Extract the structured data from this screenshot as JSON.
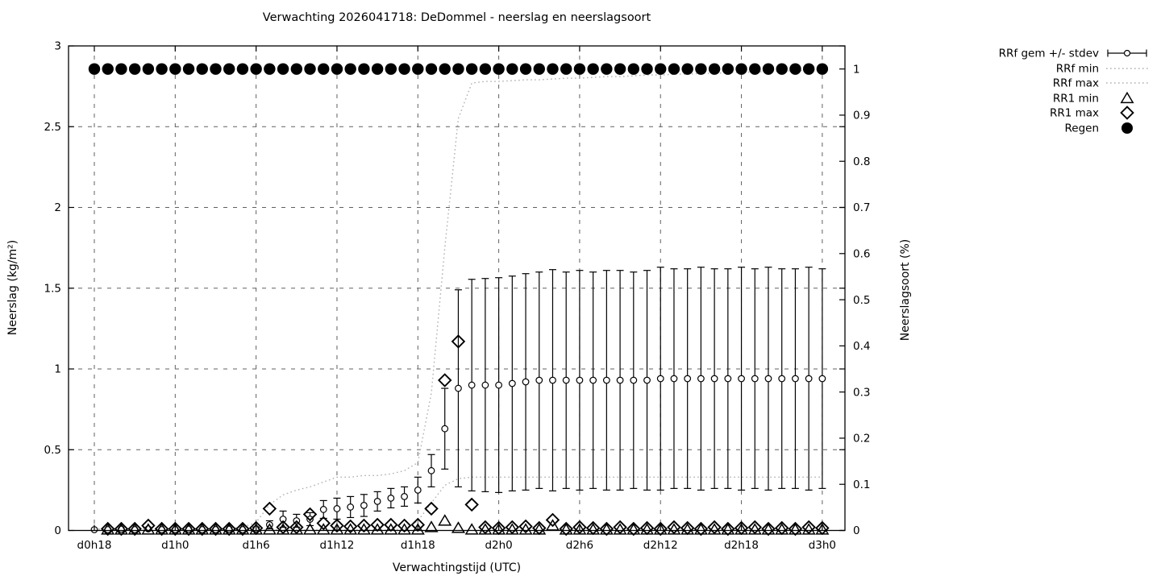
{
  "title": "Verwachting 2026041718: DeDommel - neerslag en neerslagsoort",
  "chart_data": {
    "type": "errorbar-scatter-line",
    "title": "Verwachting 2026041718: DeDommel - neerslag en neerslagsoort",
    "xlabel": "Verwachtingstijd (UTC)",
    "ylabel": "Neerslag (kg/m²)",
    "y2label": "Neerslagsoort (%)",
    "grid": true,
    "legend_position": "outside-right-top",
    "x_axis": {
      "range_hours": [
        -2,
        55.7
      ],
      "tick_positions": [
        0,
        6,
        12,
        18,
        24,
        30,
        36,
        42,
        48,
        54
      ],
      "tick_labels": [
        "d0h18",
        "d1h0",
        "d1h6",
        "d1h12",
        "d1h18",
        "d2h0",
        "d2h6",
        "d2h12",
        "d2h18",
        "d3h0"
      ]
    },
    "y_axis": {
      "min": 0,
      "max": 3,
      "tick_values": [
        0,
        0.5,
        1,
        1.5,
        2,
        2.5,
        3
      ],
      "tick_labels": [
        "0",
        "0.5",
        "1",
        "1.5",
        "2",
        "2.5",
        "3"
      ]
    },
    "y2_axis": {
      "min": 0,
      "max": 1.05,
      "tick_values": [
        0,
        0.1,
        0.2,
        0.3,
        0.4,
        0.5,
        0.6,
        0.7,
        0.8,
        0.9,
        1
      ],
      "tick_labels": [
        "0",
        "0.1",
        "0.2",
        "0.3",
        "0.4",
        "0.5",
        "0.6",
        "0.7",
        "0.8",
        "0.9",
        "1"
      ]
    },
    "categories": [
      "d0h18",
      "d0h19",
      "d0h20",
      "d0h21",
      "d0h22",
      "d0h23",
      "d1h0",
      "d1h1",
      "d1h2",
      "d1h3",
      "d1h4",
      "d1h5",
      "d1h6",
      "d1h7",
      "d1h8",
      "d1h9",
      "d1h10",
      "d1h11",
      "d1h12",
      "d1h13",
      "d1h14",
      "d1h15",
      "d1h16",
      "d1h17",
      "d1h18",
      "d1h19",
      "d1h20",
      "d1h21",
      "d1h22",
      "d1h23",
      "d2h0",
      "d2h1",
      "d2h2",
      "d2h3",
      "d2h4",
      "d2h5",
      "d2h6",
      "d2h7",
      "d2h8",
      "d2h9",
      "d2h10",
      "d2h11",
      "d2h12",
      "d2h13",
      "d2h14",
      "d2h15",
      "d2h16",
      "d2h17",
      "d2h18",
      "d2h19",
      "d2h20",
      "d2h21",
      "d2h22",
      "d2h23",
      "d3h0"
    ],
    "series": [
      {
        "name": "RRf gem +/- stdev",
        "type": "errorbar_points",
        "axis": "y1",
        "mean": [
          0.005,
          0.005,
          0.008,
          0.005,
          0.01,
          0.005,
          0.005,
          0.008,
          0.005,
          0.005,
          0.008,
          0.005,
          0.01,
          0.035,
          0.07,
          0.06,
          0.07,
          0.13,
          0.135,
          0.145,
          0.155,
          0.18,
          0.2,
          0.21,
          0.25,
          0.37,
          0.63,
          0.88,
          0.9,
          0.9,
          0.9,
          0.91,
          0.92,
          0.93,
          0.93,
          0.93,
          0.93,
          0.93,
          0.93,
          0.93,
          0.93,
          0.93,
          0.94,
          0.94,
          0.94,
          0.94,
          0.94,
          0.94,
          0.94,
          0.94,
          0.94,
          0.94,
          0.94,
          0.94,
          0.94
        ],
        "stdev": [
          0.005,
          0.005,
          0.005,
          0.005,
          0.005,
          0.005,
          0.005,
          0.005,
          0.005,
          0.005,
          0.005,
          0.005,
          0.01,
          0.025,
          0.05,
          0.04,
          0.04,
          0.055,
          0.065,
          0.065,
          0.068,
          0.06,
          0.06,
          0.06,
          0.08,
          0.1,
          0.25,
          0.61,
          0.655,
          0.66,
          0.665,
          0.665,
          0.67,
          0.67,
          0.685,
          0.67,
          0.68,
          0.67,
          0.68,
          0.68,
          0.67,
          0.68,
          0.69,
          0.68,
          0.68,
          0.69,
          0.68,
          0.68,
          0.69,
          0.68,
          0.69,
          0.68,
          0.68,
          0.69,
          0.68
        ]
      },
      {
        "name": "RRf min",
        "type": "dotted_line",
        "axis": "y1",
        "values": [
          0.003,
          0.003,
          0.003,
          0.003,
          0.003,
          0.003,
          0.003,
          0.003,
          0.003,
          0.003,
          0.003,
          0.003,
          0.003,
          0.003,
          0.003,
          0.003,
          0.003,
          0.003,
          0.003,
          0.003,
          0.003,
          0.003,
          0.003,
          0.01,
          0.06,
          0.17,
          0.28,
          0.32,
          0.33,
          0.33,
          0.33,
          0.33,
          0.33,
          0.33,
          0.33,
          0.33,
          0.33,
          0.33,
          0.33,
          0.33,
          0.33,
          0.33,
          0.33,
          0.33,
          0.33,
          0.33,
          0.33,
          0.33,
          0.33,
          0.33,
          0.33,
          0.33,
          0.33,
          0.33,
          0.33
        ]
      },
      {
        "name": "RRf max",
        "type": "dotted_line",
        "axis": "y1",
        "values": [
          0.01,
          0.01,
          0.01,
          0.01,
          0.015,
          0.01,
          0.01,
          0.01,
          0.01,
          0.012,
          0.015,
          0.02,
          0.05,
          0.16,
          0.22,
          0.25,
          0.27,
          0.3,
          0.33,
          0.33,
          0.34,
          0.34,
          0.35,
          0.37,
          0.42,
          0.85,
          1.75,
          2.55,
          2.77,
          2.78,
          2.78,
          2.785,
          2.79,
          2.79,
          2.795,
          2.8,
          2.8,
          2.805,
          2.81,
          2.81,
          2.815,
          2.82,
          2.82,
          2.825,
          2.825,
          2.83,
          2.83,
          2.835,
          2.835,
          2.84,
          2.84,
          2.845,
          2.845,
          2.85,
          2.85
        ]
      },
      {
        "name": "RR1 min",
        "type": "triangle_points",
        "axis": "y1",
        "values": [
          null,
          0.005,
          0.005,
          0.005,
          0.005,
          0.005,
          0.005,
          0.005,
          0.005,
          0.005,
          0.005,
          0.005,
          0.005,
          0.005,
          0.005,
          0.005,
          0.005,
          0.005,
          0.005,
          0.005,
          0.005,
          0.005,
          0.005,
          0.005,
          0.005,
          0.02,
          0.06,
          0.015,
          0.005,
          0.005,
          0.005,
          0.005,
          0.005,
          0.005,
          0.03,
          0.005,
          0.005,
          0.005,
          0.005,
          0.005,
          0.005,
          0.005,
          0.005,
          0.005,
          0.005,
          0.005,
          0.005,
          0.005,
          0.005,
          0.005,
          0.005,
          0.005,
          0.005,
          0.005,
          0.005
        ]
      },
      {
        "name": "RR1 max",
        "type": "diamond_points",
        "axis": "y1",
        "values": [
          null,
          0.01,
          0.01,
          0.01,
          0.03,
          0.01,
          0.01,
          0.01,
          0.01,
          0.01,
          0.01,
          0.01,
          0.015,
          0.135,
          0.02,
          0.02,
          0.1,
          0.045,
          0.03,
          0.025,
          0.03,
          0.035,
          0.035,
          0.03,
          0.035,
          0.135,
          0.93,
          1.17,
          0.16,
          0.02,
          0.015,
          0.02,
          0.025,
          0.015,
          0.065,
          0.01,
          0.02,
          0.015,
          0.01,
          0.02,
          0.01,
          0.015,
          0.01,
          0.02,
          0.015,
          0.01,
          0.02,
          0.01,
          0.015,
          0.02,
          0.01,
          0.015,
          0.01,
          0.02,
          0.015
        ]
      },
      {
        "name": "Regen",
        "type": "filled_circle_points",
        "axis": "y2",
        "values": [
          1,
          1,
          1,
          1,
          1,
          1,
          1,
          1,
          1,
          1,
          1,
          1,
          1,
          1,
          1,
          1,
          1,
          1,
          1,
          1,
          1,
          1,
          1,
          1,
          1,
          1,
          1,
          1,
          1,
          1,
          1,
          1,
          1,
          1,
          1,
          1,
          1,
          1,
          1,
          1,
          1,
          1,
          1,
          1,
          1,
          1,
          1,
          1,
          1,
          1,
          1,
          1,
          1,
          1,
          1
        ]
      }
    ]
  },
  "colors": {
    "foreground": "#000000",
    "background": "#ffffff",
    "grid": "#606060",
    "dotted_series": "#b0b0b0"
  }
}
